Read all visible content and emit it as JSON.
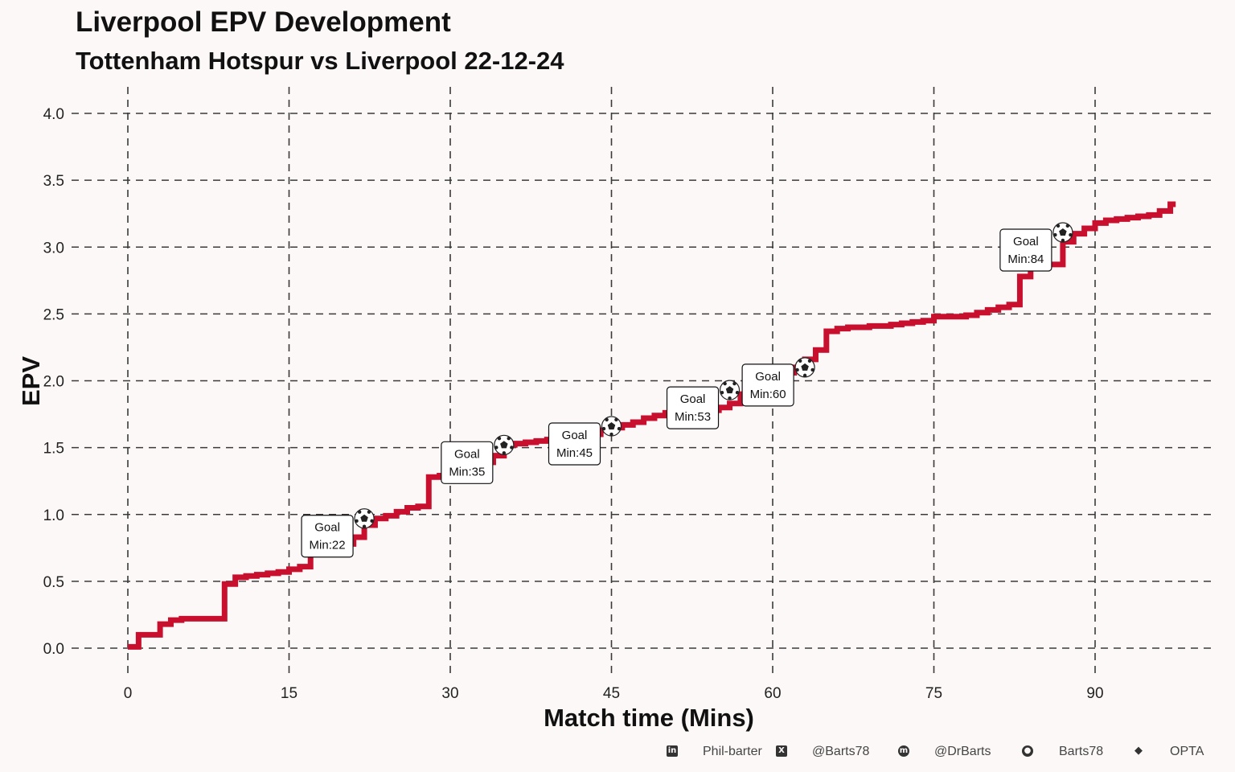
{
  "chart_data": {
    "type": "line",
    "style": "step",
    "title": "Liverpool EPV Development",
    "subtitle": "Tottenham Hotspur vs Liverpool 22-12-24",
    "xlabel": "Match time (Mins)",
    "ylabel": "EPV",
    "xlim": [
      -5,
      101
    ],
    "ylim": [
      -0.2,
      4.2
    ],
    "xticks": [
      0,
      15,
      30,
      45,
      60,
      75,
      90
    ],
    "yticks": [
      0.0,
      0.5,
      1.0,
      1.5,
      2.0,
      2.5,
      3.0,
      3.5,
      4.0
    ],
    "ytick_labels": [
      "0.0",
      "0.5",
      "1.0",
      "1.5",
      "2.0",
      "2.5",
      "3.0",
      "3.5",
      "4.0"
    ],
    "grid": true,
    "line_color": "#c8102e",
    "series": [
      {
        "name": "Liverpool",
        "x": [
          0,
          1,
          3,
          4,
          5,
          9,
          10,
          11,
          12,
          13,
          14,
          15,
          16,
          17,
          18,
          19,
          20,
          21,
          22,
          23,
          24,
          25,
          26,
          27,
          28,
          29,
          30,
          31,
          32,
          33,
          34,
          35,
          36,
          37,
          38,
          39,
          40,
          41,
          42,
          43,
          44,
          45,
          46,
          47,
          48,
          49,
          50,
          51,
          52,
          53,
          54,
          55,
          56,
          57,
          58,
          59,
          60,
          61,
          62,
          63,
          64,
          65,
          66,
          67,
          68,
          69,
          70,
          71,
          72,
          73,
          74,
          75,
          76,
          77,
          78,
          79,
          80,
          81,
          82,
          83,
          84,
          85,
          86,
          87,
          88,
          89,
          90,
          91,
          92,
          93,
          94,
          95,
          96,
          97
        ],
        "y": [
          0.01,
          0.1,
          0.18,
          0.21,
          0.22,
          0.48,
          0.53,
          0.54,
          0.55,
          0.56,
          0.57,
          0.59,
          0.61,
          0.71,
          0.72,
          0.74,
          0.78,
          0.83,
          0.92,
          0.97,
          0.99,
          1.02,
          1.05,
          1.06,
          1.28,
          1.29,
          1.31,
          1.34,
          1.36,
          1.39,
          1.44,
          1.52,
          1.53,
          1.54,
          1.55,
          1.56,
          1.57,
          1.58,
          1.59,
          1.6,
          1.63,
          1.65,
          1.67,
          1.69,
          1.72,
          1.74,
          1.76,
          1.77,
          1.77,
          1.78,
          1.78,
          1.8,
          1.83,
          1.9,
          1.93,
          1.97,
          2.04,
          2.06,
          2.1,
          2.16,
          2.23,
          2.37,
          2.39,
          2.4,
          2.4,
          2.41,
          2.41,
          2.42,
          2.43,
          2.44,
          2.45,
          2.48,
          2.48,
          2.48,
          2.49,
          2.51,
          2.53,
          2.55,
          2.57,
          2.78,
          2.87,
          2.87,
          2.87,
          3.04,
          3.1,
          3.14,
          3.18,
          3.2,
          3.21,
          3.22,
          3.23,
          3.24,
          3.27,
          3.32
        ]
      }
    ],
    "goals": [
      {
        "x": 22,
        "y": 0.97,
        "label": "Goal",
        "minute": "Min:22"
      },
      {
        "x": 35,
        "y": 1.52,
        "label": "Goal",
        "minute": "Min:35"
      },
      {
        "x": 45,
        "y": 1.66,
        "label": "Goal",
        "minute": "Min:45"
      },
      {
        "x": 56,
        "y": 1.93,
        "label": "Goal",
        "minute": "Min:53"
      },
      {
        "x": 63,
        "y": 2.1,
        "label": "Goal",
        "minute": "Min:60"
      },
      {
        "x": 87,
        "y": 3.11,
        "label": "Goal",
        "minute": "Min:84"
      }
    ]
  },
  "footer": {
    "credits": [
      {
        "icon": "linkedin-icon",
        "text": "Phil-barter"
      },
      {
        "icon": "x-icon",
        "text": "@Barts78"
      },
      {
        "icon": "mastodon-icon",
        "text": "@DrBarts"
      },
      {
        "icon": "github-icon",
        "text": "Barts78"
      },
      {
        "icon": "dropbox-icon",
        "text": "OPTA"
      }
    ]
  }
}
